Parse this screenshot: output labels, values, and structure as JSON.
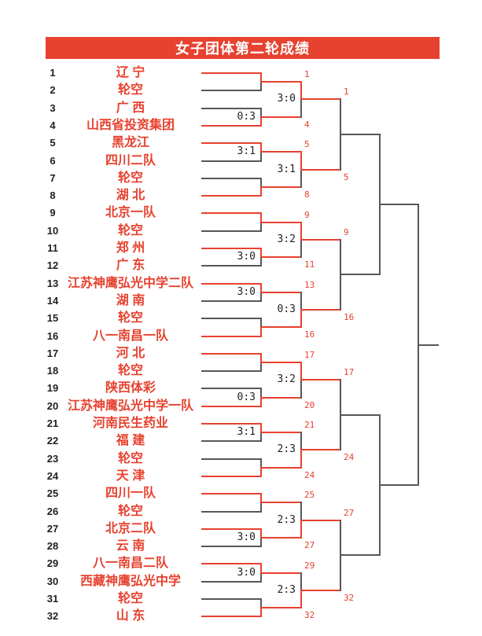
{
  "title": "女子团体第二轮成绩",
  "colors": {
    "red": "#E7412F",
    "line_gray": "#57575A",
    "ink": "#1F1F1F",
    "paper": "#FFFFFF"
  },
  "bracket": {
    "teams": [
      {
        "seed": 1,
        "name": "辽 宁"
      },
      {
        "seed": 2,
        "name": "轮空"
      },
      {
        "seed": 3,
        "name": "广 西"
      },
      {
        "seed": 4,
        "name": "山西省投资集团"
      },
      {
        "seed": 5,
        "name": "黑龙江"
      },
      {
        "seed": 6,
        "name": "四川二队"
      },
      {
        "seed": 7,
        "name": "轮空"
      },
      {
        "seed": 8,
        "name": "湖 北"
      },
      {
        "seed": 9,
        "name": "北京一队"
      },
      {
        "seed": 10,
        "name": "轮空"
      },
      {
        "seed": 11,
        "name": "郑 州"
      },
      {
        "seed": 12,
        "name": "广 东"
      },
      {
        "seed": 13,
        "name": "江苏神鹰弘光中学二队"
      },
      {
        "seed": 14,
        "name": "湖 南"
      },
      {
        "seed": 15,
        "name": "轮空"
      },
      {
        "seed": 16,
        "name": "八一南昌一队"
      },
      {
        "seed": 17,
        "name": "河 北"
      },
      {
        "seed": 18,
        "name": "轮空"
      },
      {
        "seed": 19,
        "name": "陕西体彩"
      },
      {
        "seed": 20,
        "name": "江苏神鹰弘光中学一队"
      },
      {
        "seed": 21,
        "name": "河南民生药业"
      },
      {
        "seed": 22,
        "name": "福 建"
      },
      {
        "seed": 23,
        "name": "轮空"
      },
      {
        "seed": 24,
        "name": "天 津"
      },
      {
        "seed": 25,
        "name": "四川一队"
      },
      {
        "seed": 26,
        "name": "轮空"
      },
      {
        "seed": 27,
        "name": "北京二队"
      },
      {
        "seed": 28,
        "name": "云 南"
      },
      {
        "seed": 29,
        "name": "八一南昌二队"
      },
      {
        "seed": 30,
        "name": "西藏神鹰弘光中学"
      },
      {
        "seed": 31,
        "name": "轮空"
      },
      {
        "seed": 32,
        "name": "山 东"
      }
    ],
    "round1": [
      {
        "winner": 1,
        "score": null
      },
      {
        "winner": 4,
        "score": "0:3"
      },
      {
        "winner": 5,
        "score": "3:1"
      },
      {
        "winner": 8,
        "score": null
      },
      {
        "winner": 9,
        "score": null
      },
      {
        "winner": 11,
        "score": "3:0"
      },
      {
        "winner": 13,
        "score": "3:0"
      },
      {
        "winner": 16,
        "score": null
      },
      {
        "winner": 17,
        "score": null
      },
      {
        "winner": 20,
        "score": "0:3"
      },
      {
        "winner": 21,
        "score": "3:1"
      },
      {
        "winner": 24,
        "score": null
      },
      {
        "winner": 25,
        "score": null
      },
      {
        "winner": 27,
        "score": "3:0"
      },
      {
        "winner": 29,
        "score": "3:0"
      },
      {
        "winner": 32,
        "score": null
      }
    ],
    "round2": [
      {
        "winner": 1,
        "score": "3:0"
      },
      {
        "winner": 5,
        "score": "3:1"
      },
      {
        "winner": 9,
        "score": "3:2"
      },
      {
        "winner": 16,
        "score": "0:3"
      },
      {
        "winner": 17,
        "score": "3:2"
      },
      {
        "winner": 24,
        "score": "2:3"
      },
      {
        "winner": 27,
        "score": "2:3"
      },
      {
        "winner": 32,
        "score": "2:3"
      }
    ]
  }
}
